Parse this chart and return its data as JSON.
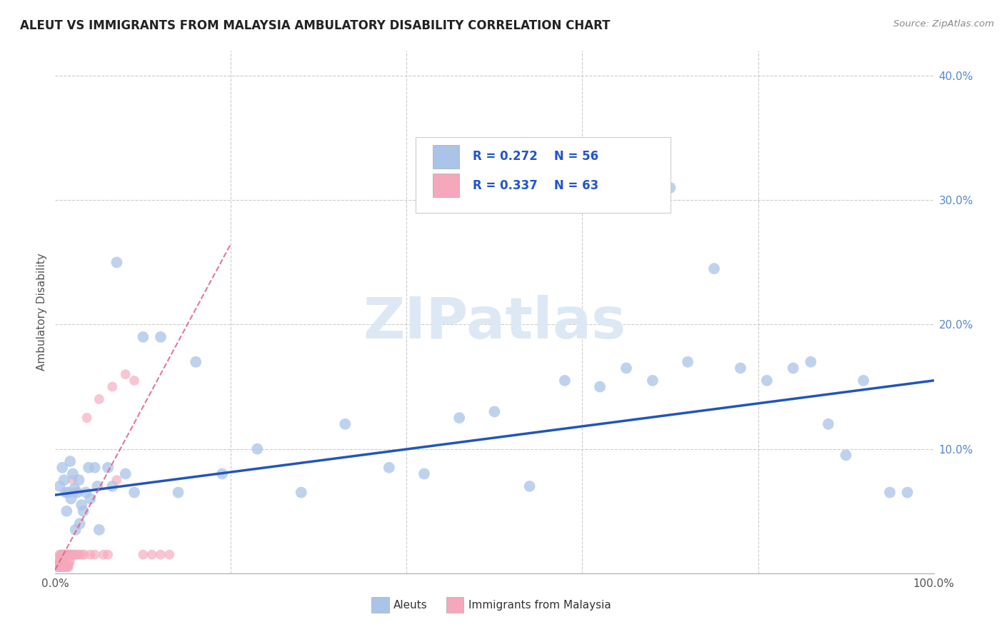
{
  "title": "ALEUT VS IMMIGRANTS FROM MALAYSIA AMBULATORY DISABILITY CORRELATION CHART",
  "source": "Source: ZipAtlas.com",
  "ylabel": "Ambulatory Disability",
  "xlim": [
    0,
    1.0
  ],
  "ylim": [
    0,
    0.42
  ],
  "xtick_vals": [
    0.0,
    0.2,
    0.4,
    0.6,
    0.8,
    1.0
  ],
  "xtick_labels": [
    "0.0%",
    "",
    "",
    "",
    "",
    "100.0%"
  ],
  "ytick_vals": [
    0.0,
    0.1,
    0.2,
    0.3,
    0.4
  ],
  "ytick_labels": [
    "",
    "10.0%",
    "20.0%",
    "30.0%",
    "40.0%"
  ],
  "aleut_color": "#aac4e8",
  "aleut_edge_color": "#aac4e8",
  "aleut_trendline_color": "#2255bb",
  "malaysia_color": "#f5a8bc",
  "malaysia_edge_color": "#f5a8bc",
  "malaysia_trendline_color": "#e06080",
  "watermark": "ZIPatlas",
  "grid_color": "#cccccc",
  "aleut_x": [
    0.005,
    0.01,
    0.012,
    0.015,
    0.018,
    0.02,
    0.022,
    0.025,
    0.028,
    0.03,
    0.035,
    0.04,
    0.045,
    0.05,
    0.06,
    0.07,
    0.08,
    0.09,
    0.1,
    0.12,
    0.14,
    0.16,
    0.19,
    0.23,
    0.28,
    0.33,
    0.38,
    0.42,
    0.46,
    0.5,
    0.54,
    0.58,
    0.62,
    0.65,
    0.68,
    0.7,
    0.72,
    0.75,
    0.78,
    0.81,
    0.84,
    0.86,
    0.88,
    0.9,
    0.92,
    0.95,
    0.97,
    0.008,
    0.013,
    0.017,
    0.023,
    0.027,
    0.032,
    0.038,
    0.048,
    0.065
  ],
  "aleut_y": [
    0.07,
    0.075,
    0.065,
    0.065,
    0.06,
    0.08,
    0.068,
    0.065,
    0.04,
    0.055,
    0.065,
    0.06,
    0.085,
    0.035,
    0.085,
    0.25,
    0.08,
    0.065,
    0.19,
    0.19,
    0.065,
    0.17,
    0.08,
    0.1,
    0.065,
    0.12,
    0.085,
    0.08,
    0.125,
    0.13,
    0.07,
    0.155,
    0.15,
    0.165,
    0.155,
    0.31,
    0.17,
    0.245,
    0.165,
    0.155,
    0.165,
    0.17,
    0.12,
    0.095,
    0.155,
    0.065,
    0.065,
    0.085,
    0.05,
    0.09,
    0.035,
    0.075,
    0.05,
    0.085,
    0.07,
    0.07
  ],
  "malaysia_x": [
    0.002,
    0.003,
    0.003,
    0.004,
    0.004,
    0.004,
    0.005,
    0.005,
    0.005,
    0.005,
    0.006,
    0.006,
    0.006,
    0.006,
    0.007,
    0.007,
    0.007,
    0.008,
    0.008,
    0.008,
    0.009,
    0.009,
    0.009,
    0.01,
    0.01,
    0.01,
    0.011,
    0.011,
    0.012,
    0.012,
    0.013,
    0.013,
    0.014,
    0.014,
    0.015,
    0.015,
    0.016,
    0.016,
    0.017,
    0.018,
    0.019,
    0.02,
    0.021,
    0.022,
    0.023,
    0.025,
    0.027,
    0.03,
    0.033,
    0.036,
    0.04,
    0.045,
    0.05,
    0.055,
    0.06,
    0.065,
    0.07,
    0.08,
    0.09,
    0.1,
    0.11,
    0.12,
    0.13
  ],
  "malaysia_y": [
    0.005,
    0.005,
    0.008,
    0.005,
    0.008,
    0.012,
    0.005,
    0.008,
    0.01,
    0.015,
    0.005,
    0.008,
    0.01,
    0.015,
    0.005,
    0.008,
    0.015,
    0.005,
    0.01,
    0.015,
    0.005,
    0.01,
    0.015,
    0.005,
    0.01,
    0.015,
    0.005,
    0.015,
    0.005,
    0.015,
    0.005,
    0.015,
    0.005,
    0.015,
    0.005,
    0.015,
    0.008,
    0.015,
    0.01,
    0.015,
    0.015,
    0.075,
    0.015,
    0.065,
    0.015,
    0.015,
    0.015,
    0.015,
    0.015,
    0.125,
    0.015,
    0.015,
    0.14,
    0.015,
    0.015,
    0.15,
    0.075,
    0.16,
    0.155,
    0.015,
    0.015,
    0.015,
    0.015
  ],
  "aleut_trend_x": [
    0.0,
    1.0
  ],
  "aleut_trend_y": [
    0.063,
    0.155
  ],
  "malaysia_trend_x": [
    0.0,
    0.13
  ],
  "malaysia_trend_y": [
    0.007,
    0.185
  ]
}
